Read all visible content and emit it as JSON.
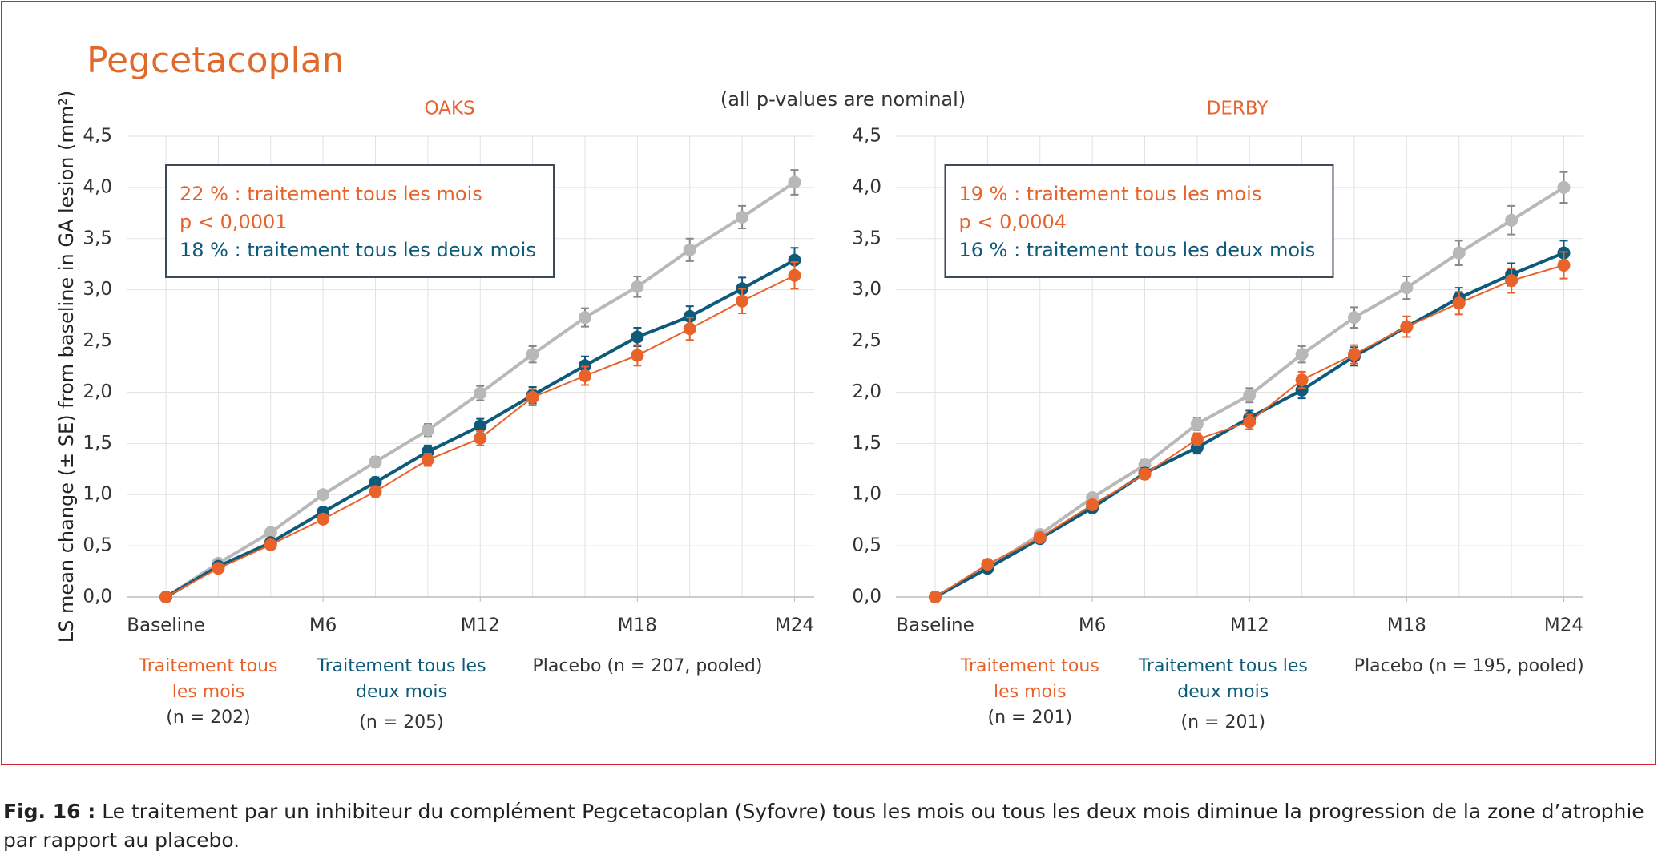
{
  "header": {
    "title": "Pegcetacoplan",
    "note": "(all p-values are nominal)"
  },
  "caption": {
    "label": "Fig. 16 :",
    "text": "Le traitement par un inhibiteur du complément Pegcetacoplan (Syfovre) tous les mois ou tous les deux mois diminue la progression de la zone d’atrophie par rapport au placebo."
  },
  "chart_data": [
    {
      "type": "line",
      "title": "OAKS",
      "ylabel": "LS mean change (± SE) from baseline in GA lesion (mm²)",
      "x": [
        0,
        2,
        4,
        6,
        8,
        10,
        12,
        14,
        16,
        18,
        20,
        22,
        24
      ],
      "xlim": [
        -1.5,
        24.75
      ],
      "xticks": [
        {
          "value": 0,
          "label": "Baseline"
        },
        {
          "value": 6,
          "label": "M6"
        },
        {
          "value": 12,
          "label": "M12"
        },
        {
          "value": 18,
          "label": "M18"
        },
        {
          "value": 24,
          "label": "M24"
        }
      ],
      "ylim": [
        0,
        4.5
      ],
      "yticks": [
        {
          "value": 0,
          "label": "0,0"
        },
        {
          "value": 0.5,
          "label": "0,5"
        },
        {
          "value": 1,
          "label": "1,0"
        },
        {
          "value": 1.5,
          "label": "1,5"
        },
        {
          "value": 2,
          "label": "2,0"
        },
        {
          "value": 2.5,
          "label": "2,5"
        },
        {
          "value": 3,
          "label": "3,0"
        },
        {
          "value": 3.5,
          "label": "3,5"
        },
        {
          "value": 4,
          "label": "4,0"
        },
        {
          "value": 4.5,
          "label": "4,5"
        }
      ],
      "grid": true,
      "annotation": [
        {
          "text": "22 % : traitement tous les mois",
          "color": "#e8622a"
        },
        {
          "text": "p < 0,0001",
          "color": "#e8622a"
        },
        {
          "text": "18 % : traitement tous les deux mois",
          "color": "#0d5a7a"
        }
      ],
      "series": [
        {
          "name": "Traitement tous les mois",
          "n": "(n = 202)",
          "color": "#e8622a",
          "width": 2,
          "values": [
            0,
            0.28,
            0.51,
            0.76,
            1.03,
            1.34,
            1.55,
            1.95,
            2.16,
            2.36,
            2.62,
            2.89,
            3.14
          ],
          "errors": [
            0,
            0.02,
            0.03,
            0.04,
            0.05,
            0.06,
            0.07,
            0.08,
            0.09,
            0.1,
            0.11,
            0.12,
            0.13
          ]
        },
        {
          "name": "Traitement tous les deux mois",
          "n": "(n = 205)",
          "color": "#0d5a7a",
          "width": 4,
          "values": [
            0,
            0.3,
            0.53,
            0.83,
            1.12,
            1.42,
            1.67,
            1.97,
            2.26,
            2.54,
            2.74,
            3.01,
            3.29
          ],
          "errors": [
            0,
            0.02,
            0.03,
            0.04,
            0.05,
            0.06,
            0.07,
            0.08,
            0.09,
            0.09,
            0.1,
            0.11,
            0.12
          ]
        },
        {
          "name": "Placebo (n = 207, pooled)",
          "color": "#b8b8b8",
          "width": 4,
          "values": [
            0,
            0.33,
            0.63,
            1.0,
            1.32,
            1.63,
            1.99,
            2.37,
            2.73,
            3.03,
            3.39,
            3.71,
            4.05
          ],
          "errors": [
            0,
            0.02,
            0.03,
            0.04,
            0.05,
            0.06,
            0.07,
            0.08,
            0.09,
            0.1,
            0.11,
            0.11,
            0.12
          ]
        }
      ]
    },
    {
      "type": "line",
      "title": "DERBY",
      "x": [
        0,
        2,
        4,
        6,
        8,
        10,
        12,
        14,
        16,
        18,
        20,
        22,
        24
      ],
      "xlim": [
        -1.5,
        24.75
      ],
      "xticks": [
        {
          "value": 0,
          "label": "Baseline"
        },
        {
          "value": 6,
          "label": "M6"
        },
        {
          "value": 12,
          "label": "M12"
        },
        {
          "value": 18,
          "label": "M18"
        },
        {
          "value": 24,
          "label": "M24"
        }
      ],
      "ylim": [
        0,
        4.5
      ],
      "yticks": [
        {
          "value": 0,
          "label": "0,0"
        },
        {
          "value": 0.5,
          "label": "0,5"
        },
        {
          "value": 1,
          "label": "1,0"
        },
        {
          "value": 1.5,
          "label": "1,5"
        },
        {
          "value": 2,
          "label": "2,0"
        },
        {
          "value": 2.5,
          "label": "2,5"
        },
        {
          "value": 3,
          "label": "3,0"
        },
        {
          "value": 3.5,
          "label": "3,5"
        },
        {
          "value": 4,
          "label": "4,0"
        },
        {
          "value": 4.5,
          "label": "4,5"
        }
      ],
      "grid": true,
      "annotation": [
        {
          "text": "19 % : traitement tous les mois",
          "color": "#e8622a"
        },
        {
          "text": "p < 0,0004",
          "color": "#e8622a"
        },
        {
          "text": "16 % : traitement tous les deux mois",
          "color": "#0d5a7a"
        }
      ],
      "series": [
        {
          "name": "Traitement tous les mois",
          "n": "(n = 201)",
          "color": "#e8622a",
          "width": 2,
          "values": [
            0,
            0.32,
            0.58,
            0.9,
            1.2,
            1.54,
            1.71,
            2.12,
            2.37,
            2.64,
            2.87,
            3.09,
            3.24
          ],
          "errors": [
            0,
            0.02,
            0.03,
            0.04,
            0.05,
            0.06,
            0.07,
            0.08,
            0.09,
            0.1,
            0.11,
            0.12,
            0.13
          ]
        },
        {
          "name": "Traitement tous les deux mois",
          "n": "(n = 201)",
          "color": "#0d5a7a",
          "width": 4,
          "values": [
            0,
            0.28,
            0.57,
            0.87,
            1.21,
            1.46,
            1.75,
            2.02,
            2.35,
            2.64,
            2.92,
            3.15,
            3.36
          ],
          "errors": [
            0,
            0.02,
            0.03,
            0.04,
            0.05,
            0.06,
            0.07,
            0.08,
            0.09,
            0.1,
            0.1,
            0.11,
            0.12
          ]
        },
        {
          "name": "Placebo (n = 195, pooled)",
          "color": "#b8b8b8",
          "width": 4,
          "values": [
            0,
            0.29,
            0.61,
            0.97,
            1.29,
            1.69,
            1.97,
            2.37,
            2.73,
            3.02,
            3.36,
            3.68,
            4.0
          ],
          "errors": [
            0,
            0.02,
            0.03,
            0.04,
            0.05,
            0.06,
            0.07,
            0.08,
            0.1,
            0.11,
            0.12,
            0.14,
            0.15
          ]
        }
      ]
    }
  ]
}
